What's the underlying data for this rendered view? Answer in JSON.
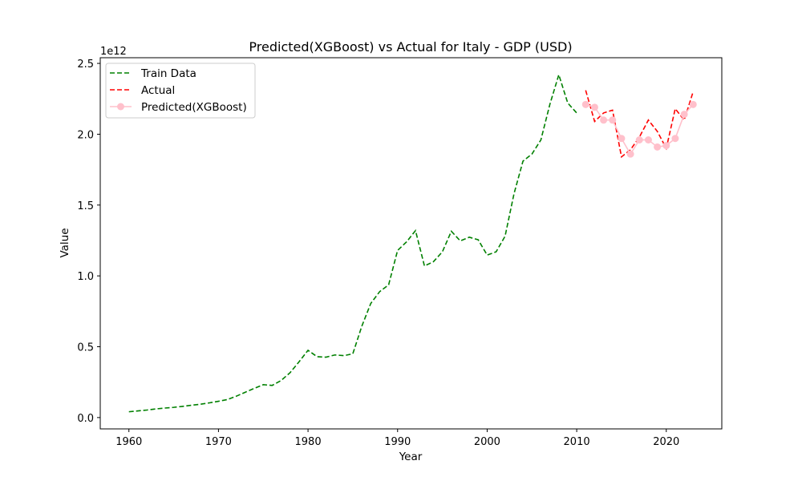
{
  "chart_data": {
    "type": "line",
    "title": "Predicted(XGBoost) vs Actual for Italy - GDP (USD)",
    "xlabel": "Year",
    "ylabel": "Value",
    "y_scale_label": "1e12",
    "xlim": [
      1956.8,
      2026.2
    ],
    "ylim": [
      -0.08,
      2.54
    ],
    "x_ticks": [
      1960,
      1970,
      1980,
      1990,
      2000,
      2010,
      2020
    ],
    "y_ticks": [
      0.0,
      0.5,
      1.0,
      1.5,
      2.0,
      2.5
    ],
    "y_tick_labels": [
      "0.0",
      "0.5",
      "1.0",
      "1.5",
      "2.0",
      "2.5"
    ],
    "grid": false,
    "legend_position": "top-left",
    "series": [
      {
        "name": "Train Data",
        "color": "#008000",
        "style": "dashed",
        "marker": "none",
        "x": [
          1960,
          1961,
          1962,
          1963,
          1964,
          1965,
          1966,
          1967,
          1968,
          1969,
          1970,
          1971,
          1972,
          1973,
          1974,
          1975,
          1976,
          1977,
          1978,
          1979,
          1980,
          1981,
          1982,
          1983,
          1984,
          1985,
          1986,
          1987,
          1988,
          1989,
          1990,
          1991,
          1992,
          1993,
          1994,
          1995,
          1996,
          1997,
          1998,
          1999,
          2000,
          2001,
          2002,
          2003,
          2004,
          2005,
          2006,
          2007,
          2008,
          2009,
          2010
        ],
        "y": [
          0.041,
          0.047,
          0.053,
          0.061,
          0.067,
          0.072,
          0.079,
          0.087,
          0.094,
          0.104,
          0.115,
          0.127,
          0.151,
          0.179,
          0.206,
          0.232,
          0.227,
          0.262,
          0.317,
          0.394,
          0.475,
          0.43,
          0.426,
          0.442,
          0.437,
          0.45,
          0.644,
          0.805,
          0.889,
          0.937,
          1.18,
          1.24,
          1.32,
          1.07,
          1.1,
          1.17,
          1.315,
          1.247,
          1.273,
          1.255,
          1.147,
          1.17,
          1.28,
          1.58,
          1.81,
          1.86,
          1.96,
          2.21,
          2.42,
          2.22,
          2.15
        ]
      },
      {
        "name": "Actual",
        "color": "#ff0000",
        "style": "dashed",
        "marker": "none",
        "x": [
          2011,
          2012,
          2013,
          2014,
          2015,
          2016,
          2017,
          2018,
          2019,
          2020,
          2021,
          2022,
          2023
        ],
        "y": [
          2.31,
          2.09,
          2.15,
          2.17,
          1.84,
          1.89,
          1.98,
          2.1,
          2.02,
          1.9,
          2.18,
          2.1,
          2.3
        ]
      },
      {
        "name": "Predicted(XGBoost)",
        "color": "#ffc0cb",
        "style": "solid",
        "marker": "circle",
        "x": [
          2011,
          2012,
          2013,
          2014,
          2015,
          2016,
          2017,
          2018,
          2019,
          2020,
          2021,
          2022,
          2023
        ],
        "y": [
          2.21,
          2.19,
          2.1,
          2.1,
          1.97,
          1.86,
          1.96,
          1.96,
          1.91,
          1.92,
          1.97,
          2.14,
          2.21
        ]
      }
    ]
  }
}
